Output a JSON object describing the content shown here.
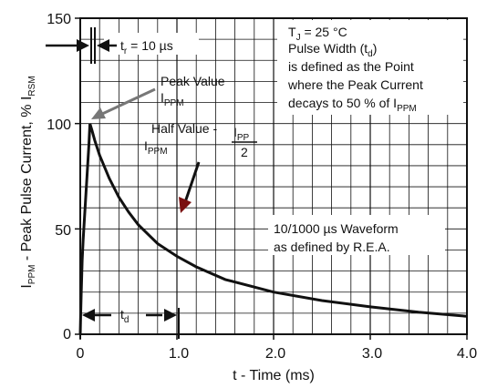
{
  "chart_data": {
    "type": "line",
    "xlabel": "t - Time (ms)",
    "ylabel_parts": [
      "I",
      "PPM",
      " - Peak Pulse Current, % I",
      "RSM"
    ],
    "xlim": [
      0,
      4.0
    ],
    "ylim": [
      0,
      150
    ],
    "x_ticks": [
      0,
      1.0,
      2.0,
      3.0,
      4.0
    ],
    "x_tick_labels": [
      "0",
      "1.0",
      "2.0",
      "3.0",
      "4.0"
    ],
    "y_ticks": [
      0,
      50,
      100,
      150
    ],
    "y_tick_labels": [
      "0",
      "50",
      "100",
      "150"
    ],
    "grid": true,
    "series": [
      {
        "x": [
          0,
          0.005,
          0.01,
          0.02,
          0.03,
          0.05,
          0.07,
          0.09,
          0.1,
          0.12,
          0.15,
          0.2,
          0.3,
          0.4,
          0.5,
          0.6,
          0.8,
          1.0,
          1.2,
          1.5,
          2.0,
          2.5,
          3.0,
          3.5,
          4.0
        ],
        "y": [
          0,
          10,
          20,
          35,
          45,
          60,
          75,
          90,
          100,
          97,
          92,
          85,
          74,
          65,
          58,
          52,
          43,
          37,
          32,
          26,
          20,
          16,
          13,
          10.5,
          8.5
        ]
      }
    ],
    "annotations": {
      "tr": [
        "t",
        "r",
        " = 10 µs"
      ],
      "td": [
        "t",
        "d"
      ],
      "peak_value": "Peak Value",
      "ippm1": [
        "I",
        "PPM"
      ],
      "half_value": "Half Value -",
      "ippm2": [
        "I",
        "PPM"
      ],
      "ipp_frac": [
        "I",
        "PP",
        "2"
      ],
      "tj": [
        "T",
        "J",
        " = 25 °C"
      ],
      "pulse_width": [
        "Pulse Width (t",
        "d",
        ")"
      ],
      "defined_line": "is defined as the Point",
      "decays_line": "where the Peak Current",
      "decays_50": [
        "decays to 50 % of I",
        "PPM"
      ],
      "waveform1": "10/1000 µs Waveform",
      "waveform2": "as defined by R.E.A."
    }
  },
  "colors": {
    "curve": "#111111",
    "arrow_gray": "#777777",
    "grid": "#111111"
  }
}
